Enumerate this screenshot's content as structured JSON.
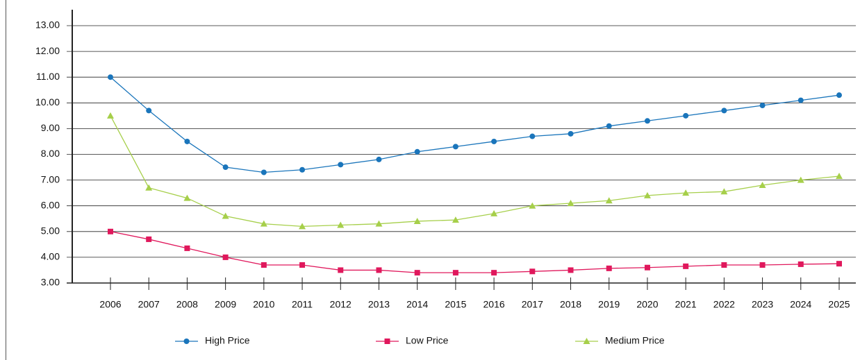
{
  "chart_data": {
    "type": "line",
    "categories": [
      "2006",
      "2007",
      "2008",
      "2009",
      "2010",
      "2011",
      "2012",
      "2013",
      "2014",
      "2015",
      "2016",
      "2017",
      "2018",
      "2019",
      "2020",
      "2021",
      "2022",
      "2023",
      "2024",
      "2025"
    ],
    "series": [
      {
        "name": "High Price",
        "color": "#1a75bb",
        "marker": "circle",
        "values": [
          11.0,
          9.7,
          8.5,
          7.5,
          7.3,
          7.4,
          7.6,
          7.8,
          8.1,
          8.3,
          8.5,
          8.7,
          8.8,
          9.1,
          9.3,
          9.5,
          9.7,
          9.9,
          10.1,
          10.3
        ]
      },
      {
        "name": "Low Price",
        "color": "#e0185c",
        "marker": "square",
        "values": [
          5.0,
          4.7,
          4.35,
          4.0,
          3.7,
          3.7,
          3.5,
          3.5,
          3.4,
          3.4,
          3.4,
          3.45,
          3.5,
          3.57,
          3.6,
          3.65,
          3.7,
          3.7,
          3.73,
          3.75
        ]
      },
      {
        "name": "Medium Price",
        "color": "#a6cf4a",
        "marker": "triangle",
        "values": [
          9.5,
          6.7,
          6.3,
          5.6,
          5.3,
          5.2,
          5.25,
          5.3,
          5.4,
          5.45,
          5.7,
          6.0,
          6.1,
          6.2,
          6.4,
          6.5,
          6.55,
          6.8,
          7.0,
          7.15
        ]
      }
    ],
    "ylim": [
      3,
      13
    ],
    "yticks": [
      {
        "value": 3,
        "label": "3.00"
      },
      {
        "value": 4,
        "label": "4.00"
      },
      {
        "value": 5,
        "label": "5.00"
      },
      {
        "value": 6,
        "label": "6.00"
      },
      {
        "value": 7,
        "label": "7.00"
      },
      {
        "value": 8,
        "label": "8.00"
      },
      {
        "value": 9,
        "label": "9.00"
      },
      {
        "value": 10,
        "label": "10.00"
      },
      {
        "value": 11,
        "label": "11.00"
      },
      {
        "value": 12,
        "label": "12.00"
      },
      {
        "value": 13,
        "label": "13.00"
      }
    ],
    "grid": true,
    "legend": "bottom"
  }
}
